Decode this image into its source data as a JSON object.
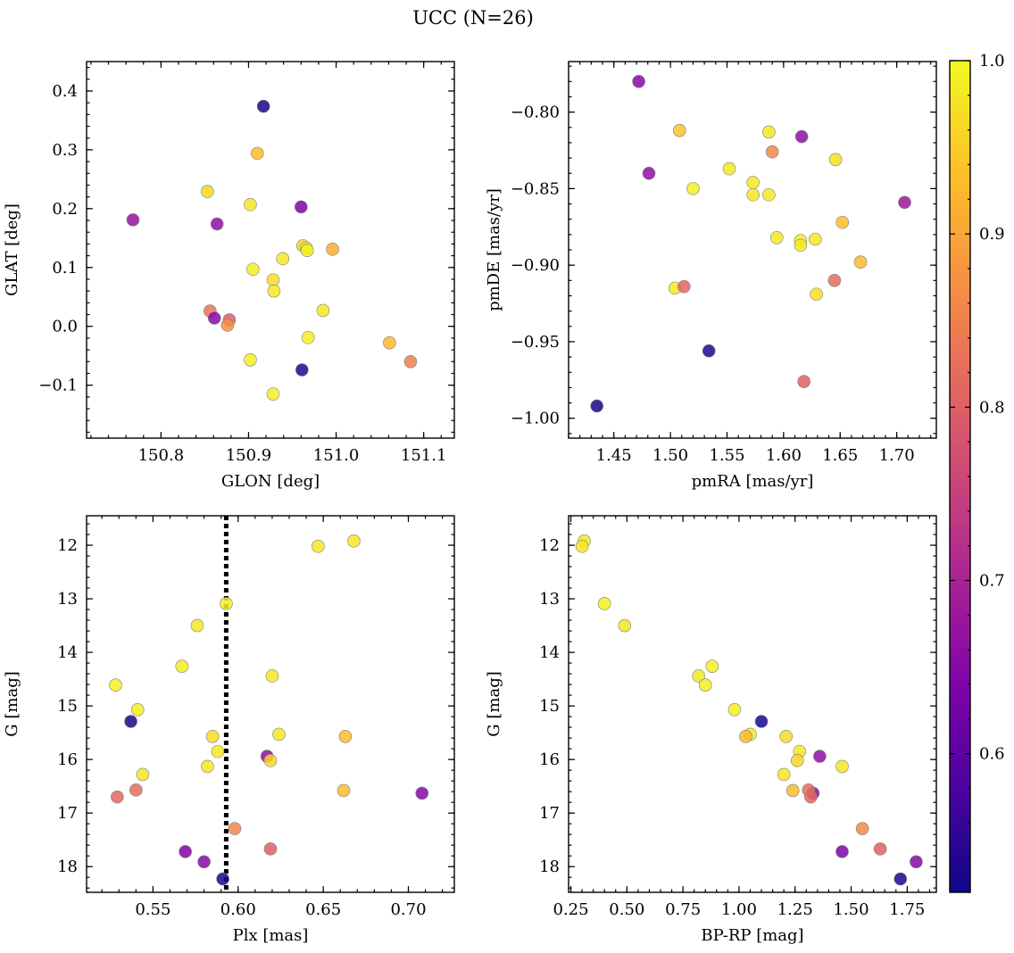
{
  "title": "UCC (N=26)",
  "chart_data": [
    {
      "type": "scatter",
      "xlabel": "GLON [deg]",
      "ylabel": "GLAT [deg]",
      "xlim": [
        150.715,
        151.135
      ],
      "ylim": [
        -0.19,
        0.45
      ],
      "xticks": [
        150.8,
        150.9,
        151.0,
        151.1
      ],
      "xtick_labels": [
        "150.8",
        "150.9",
        "151.0",
        "151.1"
      ],
      "yticks": [
        -0.1,
        0.0,
        0.1,
        0.2,
        0.3,
        0.4
      ],
      "ytick_labels": [
        "−0.1",
        "0.0",
        "0.1",
        "0.2",
        "0.3",
        "0.4"
      ],
      "x": [
        150.917,
        150.91,
        150.768,
        150.853,
        150.902,
        150.96,
        150.864,
        150.962,
        150.905,
        150.966,
        150.967,
        150.939,
        150.996,
        150.928,
        150.929,
        150.856,
        150.985,
        150.861,
        150.878,
        150.876,
        150.968,
        151.061,
        151.085,
        150.902,
        150.961,
        150.928
      ],
      "y": [
        0.374,
        0.294,
        0.181,
        0.229,
        0.207,
        0.203,
        0.174,
        0.137,
        0.097,
        0.133,
        0.129,
        0.115,
        0.131,
        0.079,
        0.06,
        0.026,
        0.027,
        0.014,
        0.011,
        0.002,
        -0.019,
        -0.028,
        -0.06,
        -0.057,
        -0.074,
        -0.115
      ],
      "membership": [
        0.53,
        0.93,
        0.67,
        0.96,
        0.98,
        0.64,
        0.66,
        0.96,
        0.99,
        0.98,
        0.99,
        0.98,
        0.91,
        0.97,
        0.98,
        0.83,
        0.98,
        0.65,
        0.8,
        0.87,
        0.99,
        0.93,
        0.85,
        0.99,
        0.54,
        0.99
      ]
    },
    {
      "type": "scatter",
      "xlabel": "pmRA [mas/yr]",
      "ylabel": "pmDE [mas/yr]",
      "xlim": [
        1.41,
        1.735
      ],
      "ylim": [
        -1.013,
        -0.767
      ],
      "xticks": [
        1.45,
        1.5,
        1.55,
        1.6,
        1.65,
        1.7
      ],
      "xtick_labels": [
        "1.45",
        "1.50",
        "1.55",
        "1.60",
        "1.65",
        "1.70"
      ],
      "yticks": [
        -1.0,
        -0.95,
        -0.9,
        -0.85,
        -0.8
      ],
      "ytick_labels": [
        "−1.00",
        "−0.95",
        "−0.90",
        "−0.85",
        "−0.80"
      ],
      "x": [
        1.472,
        1.508,
        1.587,
        1.616,
        1.59,
        1.646,
        1.481,
        1.552,
        1.573,
        1.52,
        1.573,
        1.587,
        1.707,
        1.652,
        1.594,
        1.615,
        1.628,
        1.615,
        1.668,
        1.645,
        1.504,
        1.512,
        1.629,
        1.534,
        1.618,
        1.435
      ],
      "y": [
        -0.78,
        -0.812,
        -0.813,
        -0.816,
        -0.826,
        -0.831,
        -0.84,
        -0.837,
        -0.846,
        -0.85,
        -0.854,
        -0.854,
        -0.859,
        -0.872,
        -0.882,
        -0.884,
        -0.883,
        -0.887,
        -0.898,
        -0.91,
        -0.915,
        -0.914,
        -0.919,
        -0.956,
        -0.976,
        -0.992
      ],
      "membership": [
        0.65,
        0.94,
        0.98,
        0.66,
        0.86,
        0.97,
        0.66,
        0.98,
        0.98,
        0.99,
        0.98,
        0.98,
        0.68,
        0.93,
        0.98,
        0.99,
        0.98,
        0.98,
        0.93,
        0.82,
        0.98,
        0.81,
        0.97,
        0.54,
        0.8,
        0.53
      ]
    },
    {
      "type": "scatter",
      "xlabel": "Plx [mas]",
      "ylabel": "G [mag]",
      "xlim": [
        0.511,
        0.727
      ],
      "ylim": [
        18.48,
        11.45
      ],
      "xticks": [
        0.55,
        0.6,
        0.65,
        0.7
      ],
      "xtick_labels": [
        "0.55",
        "0.60",
        "0.65",
        "0.70"
      ],
      "yticks": [
        12,
        13,
        14,
        15,
        16,
        17,
        18
      ],
      "ytick_labels": [
        "12",
        "13",
        "14",
        "15",
        "16",
        "17",
        "18"
      ],
      "reference_line": {
        "x": 0.593,
        "style": "dotted",
        "color": "#000000"
      },
      "x": [
        0.668,
        0.647,
        0.593,
        0.576,
        0.567,
        0.62,
        0.528,
        0.541,
        0.537,
        0.624,
        0.585,
        0.663,
        0.588,
        0.617,
        0.619,
        0.582,
        0.544,
        0.662,
        0.54,
        0.529,
        0.708,
        0.598,
        0.619,
        0.569,
        0.58,
        0.591
      ],
      "y": [
        11.92,
        12.02,
        13.09,
        13.5,
        14.26,
        14.44,
        14.61,
        15.07,
        15.29,
        15.53,
        15.57,
        15.57,
        15.85,
        15.94,
        16.02,
        16.13,
        16.28,
        16.58,
        16.57,
        16.7,
        16.63,
        17.29,
        17.67,
        17.72,
        17.91,
        18.23
      ],
      "membership": [
        0.98,
        0.98,
        0.99,
        0.98,
        0.99,
        0.98,
        0.99,
        0.99,
        0.53,
        0.98,
        0.97,
        0.93,
        0.98,
        0.66,
        0.96,
        0.98,
        0.98,
        0.93,
        0.82,
        0.81,
        0.65,
        0.86,
        0.8,
        0.64,
        0.65,
        0.53
      ]
    },
    {
      "type": "scatter",
      "xlabel": "BP-RP [mag]",
      "ylabel": "G [mag]",
      "xlim": [
        0.24,
        1.88
      ],
      "ylim": [
        18.48,
        11.45
      ],
      "xticks": [
        0.25,
        0.5,
        0.75,
        1.0,
        1.25,
        1.5,
        1.75
      ],
      "xtick_labels": [
        "0.25",
        "0.50",
        "0.75",
        "1.00",
        "1.25",
        "1.50",
        "1.75"
      ],
      "yticks": [
        12,
        13,
        14,
        15,
        16,
        17,
        18
      ],
      "ytick_labels": [
        "12",
        "13",
        "14",
        "15",
        "16",
        "17",
        "18"
      ],
      "x": [
        0.31,
        0.3,
        0.4,
        0.49,
        0.88,
        0.82,
        0.85,
        0.98,
        1.1,
        1.05,
        1.21,
        1.03,
        1.27,
        1.36,
        1.26,
        1.46,
        1.2,
        1.24,
        1.33,
        1.31,
        1.32,
        1.55,
        1.63,
        1.46,
        1.79,
        1.72
      ],
      "y": [
        11.92,
        12.02,
        13.09,
        13.5,
        14.26,
        14.44,
        14.61,
        15.07,
        15.29,
        15.53,
        15.57,
        15.57,
        15.85,
        15.94,
        16.02,
        16.13,
        16.28,
        16.58,
        16.63,
        16.57,
        16.7,
        17.29,
        17.67,
        17.72,
        17.91,
        18.23
      ],
      "membership": [
        0.98,
        0.98,
        0.99,
        0.98,
        0.99,
        0.98,
        0.99,
        0.99,
        0.53,
        0.98,
        0.97,
        0.93,
        0.98,
        0.66,
        0.96,
        0.98,
        0.98,
        0.93,
        0.65,
        0.82,
        0.81,
        0.86,
        0.8,
        0.64,
        0.65,
        0.53
      ]
    }
  ],
  "colorbar": {
    "colormap": "plasma",
    "range": [
      0.52,
      1.0
    ],
    "ticks": [
      0.6,
      0.7,
      0.8,
      0.9,
      1.0
    ],
    "tick_labels": [
      "0.6",
      "0.7",
      "0.8",
      "0.9",
      "1.0"
    ]
  }
}
